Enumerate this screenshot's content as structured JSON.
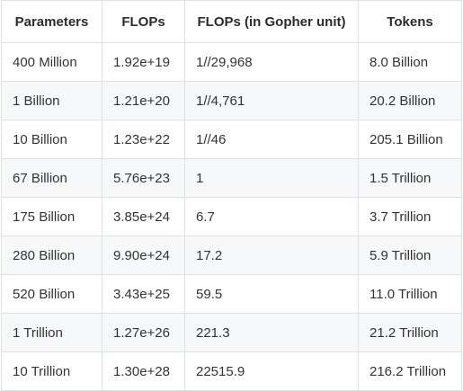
{
  "table": {
    "headers": [
      "Parameters",
      "FLOPs",
      "FLOPs (in Gopher unit)",
      "Tokens"
    ],
    "rows": [
      [
        "400 Million",
        "1.92e+19",
        "1//29,968",
        "8.0 Billion"
      ],
      [
        "1 Billion",
        "1.21e+20",
        "1//4,761",
        "20.2 Billion"
      ],
      [
        "10 Billion",
        "1.23e+22",
        "1//46",
        "205.1 Billion"
      ],
      [
        "67 Billion",
        "5.76e+23",
        "1",
        "1.5 Trillion"
      ],
      [
        "175 Billion",
        "3.85e+24",
        "6.7",
        "3.7 Trillion"
      ],
      [
        "280 Billion",
        "9.90e+24",
        "17.2",
        "5.9 Trillion"
      ],
      [
        "520 Billion",
        "3.43e+25",
        "59.5",
        "11.0 Trillion"
      ],
      [
        "1 Trillion",
        "1.27e+26",
        "221.3",
        "21.2 Trillion"
      ],
      [
        "10 Trillion",
        "1.30e+28",
        "22515.9",
        "216.2 Trillion"
      ]
    ],
    "colors": {
      "border": "#dfe2e5",
      "stripe": "#f6f8fa",
      "text": "#333333"
    }
  }
}
